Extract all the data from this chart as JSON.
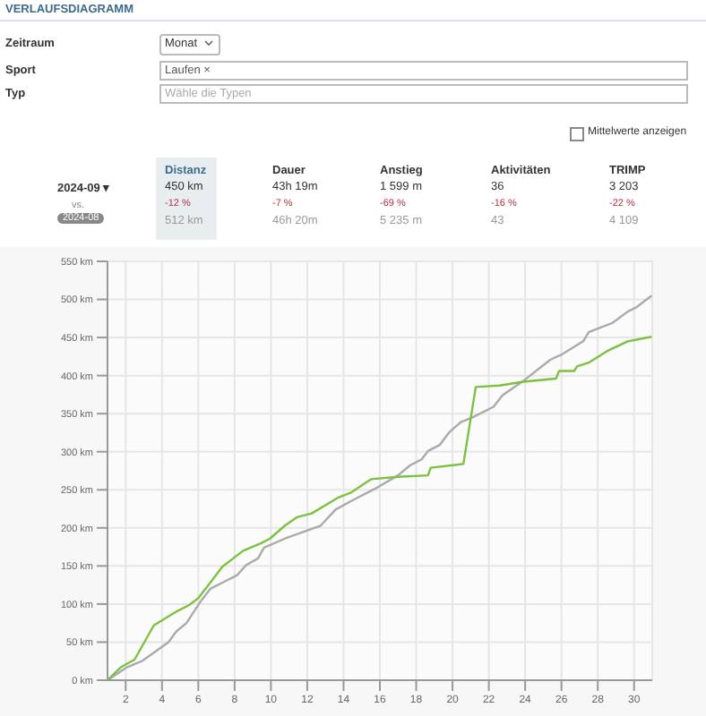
{
  "chart_data": [
    {
      "type": "other",
      "title": "VERLAUFSDIAGRAMM",
      "annotations": [
        "Zeitraum",
        "Monat",
        "Sport",
        "Laufen ×",
        "Typ",
        "Wähle die Typen",
        "Mittelwerte anzeigen",
        "Distanz",
        "Dauer",
        "Anstieg",
        "Aktivitäten",
        "TRIMP",
        "2024-09 ▾",
        "450 km",
        "43h 19m",
        "1 599 m",
        "36",
        "3 203",
        "-12 %",
        "-7 %",
        "-69 %",
        "-16 %",
        "-22 %",
        "vs.",
        "2024-08",
        "512 km",
        "46h 20m",
        "5 235 m",
        "43",
        "4 109"
      ]
    },
    {
      "type": "line",
      "xlim": [
        1,
        31
      ],
      "xticks": [
        2,
        4,
        6,
        8,
        10,
        12,
        14,
        16,
        18,
        20,
        22,
        24,
        26,
        28,
        30
      ],
      "ylim": [
        0,
        550
      ],
      "yticks": [
        {
          "value": 0,
          "label": "0 km"
        },
        {
          "value": 50,
          "label": "50 km"
        },
        {
          "value": 100,
          "label": "100 km"
        },
        {
          "value": 150,
          "label": "150 km"
        },
        {
          "value": 200,
          "label": "200 km"
        },
        {
          "value": 250,
          "label": "250 km"
        },
        {
          "value": 300,
          "label": "300 km"
        },
        {
          "value": 350,
          "label": "350 km"
        },
        {
          "value": 400,
          "label": "400 km"
        },
        {
          "value": 450,
          "label": "450 km"
        },
        {
          "value": 500,
          "label": "500 km"
        },
        {
          "value": 550,
          "label": "550 km"
        }
      ],
      "grid": true,
      "marker": "none",
      "line_style": "solid",
      "series": [
        {
          "color": "#aaaaaa",
          "x": [
            1,
            2.07,
            2.89,
            4.36,
            4.79,
            5.35,
            6.17,
            6.66,
            8.14,
            8.63,
            9.29,
            9.62,
            10.77,
            12.74,
            13.56,
            14.4,
            15.7,
            17.0,
            17.66,
            18.3,
            18.65,
            19.3,
            19.8,
            20.46,
            21.1,
            22.26,
            22.75,
            23.9,
            25.4,
            26.04,
            27.2,
            27.5,
            28.8,
            29.65,
            30.15,
            30.97
          ],
          "values": [
            0,
            17,
            25,
            50,
            64,
            75,
            105,
            120,
            138,
            151,
            160,
            174,
            186,
            203,
            224,
            235,
            251,
            269,
            282,
            290,
            301,
            309,
            325,
            339,
            345,
            359,
            374,
            393,
            421,
            428,
            445,
            457,
            469,
            484,
            490,
            505
          ]
        },
        {
          "color": "#7cc242",
          "x": [
            1,
            1.73,
            2.49,
            3.55,
            4.86,
            5.52,
            6.01,
            6.66,
            7.32,
            8.47,
            9.46,
            9.95,
            10.77,
            11.43,
            12.25,
            13.72,
            14.38,
            15.53,
            17.0,
            18.65,
            18.8,
            20.6,
            21.28,
            22.6,
            23.9,
            25.7,
            25.87,
            26.7,
            26.86,
            27.5,
            28.5,
            29.65,
            30.97
          ],
          "values": [
            0,
            17,
            27,
            72,
            91,
            99,
            108,
            128,
            149,
            170,
            180,
            186,
            203,
            214,
            219,
            240,
            246,
            264,
            267,
            269,
            279,
            284,
            385,
            387,
            392,
            396,
            406,
            406,
            412,
            417,
            432,
            445,
            451
          ]
        }
      ]
    }
  ]
}
